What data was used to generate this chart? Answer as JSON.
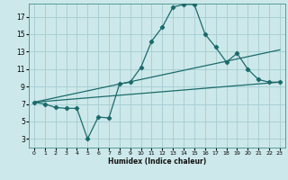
{
  "xlabel": "Humidex (Indice chaleur)",
  "bg_color": "#cde8ea",
  "grid_color": "#a8d0d4",
  "line_color": "#1a6b6b",
  "xlim": [
    -0.5,
    23.5
  ],
  "ylim": [
    2,
    18.5
  ],
  "xticks": [
    0,
    1,
    2,
    3,
    4,
    5,
    6,
    7,
    8,
    9,
    10,
    11,
    12,
    13,
    14,
    15,
    16,
    17,
    18,
    19,
    20,
    21,
    22,
    23
  ],
  "yticks": [
    3,
    5,
    7,
    9,
    11,
    13,
    15,
    17
  ],
  "curve1_x": [
    0,
    1,
    2,
    3,
    4,
    5,
    6,
    7,
    8,
    9,
    10,
    11,
    12,
    13,
    14,
    15,
    16,
    17,
    18,
    19,
    20,
    21,
    22,
    23
  ],
  "curve1_y": [
    7.2,
    7.0,
    6.6,
    6.5,
    6.5,
    3.0,
    5.5,
    5.4,
    9.3,
    9.5,
    11.2,
    14.2,
    15.8,
    18.1,
    18.4,
    18.4,
    15.0,
    13.5,
    11.8,
    12.8,
    11.0,
    9.8,
    9.5,
    9.5
  ],
  "trend1_x": [
    0,
    23
  ],
  "trend1_y": [
    7.2,
    9.5
  ],
  "trend2_x": [
    0,
    23
  ],
  "trend2_y": [
    7.2,
    13.2
  ]
}
